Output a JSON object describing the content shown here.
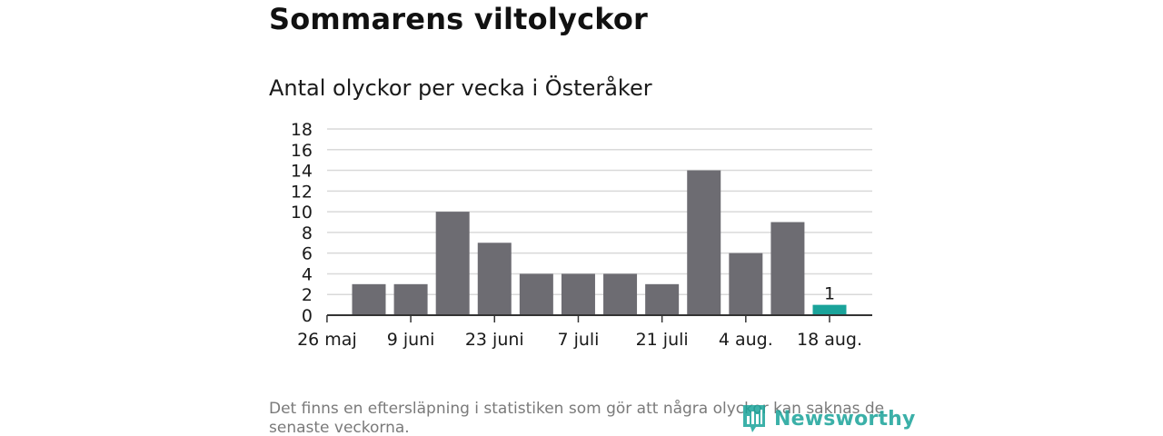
{
  "title": "Sommarens viltolyckor",
  "subtitle": "Antal olyckor per vecka i Österåker",
  "footnote": "Det finns en eftersläpning i statistiken som gör att några olyckor kan saknas de senaste veckorna.",
  "logo": {
    "text": "Newsworthy",
    "icon": "bar-chart-icon",
    "color": "#1aa39a"
  },
  "chart_data": {
    "type": "bar",
    "title": "Antal olyckor per vecka i Österåker",
    "xlabel": "",
    "ylabel": "",
    "ylim": [
      0,
      18
    ],
    "yticks": [
      0,
      2,
      4,
      6,
      8,
      10,
      12,
      14,
      16,
      18
    ],
    "grid": true,
    "xtick_labels": [
      "26 maj",
      "9 juni",
      "23 juni",
      "7 juli",
      "21 juli",
      "4 aug.",
      "18 aug."
    ],
    "values": [
      3,
      3,
      10,
      7,
      4,
      4,
      4,
      3,
      14,
      6,
      9,
      1
    ],
    "bar_colors": [
      "#6d6c72",
      "#6d6c72",
      "#6d6c72",
      "#6d6c72",
      "#6d6c72",
      "#6d6c72",
      "#6d6c72",
      "#6d6c72",
      "#6d6c72",
      "#6d6c72",
      "#6d6c72",
      "#1aa39a"
    ],
    "data_labels": [
      null,
      null,
      null,
      null,
      null,
      null,
      null,
      null,
      null,
      null,
      null,
      "1"
    ]
  }
}
